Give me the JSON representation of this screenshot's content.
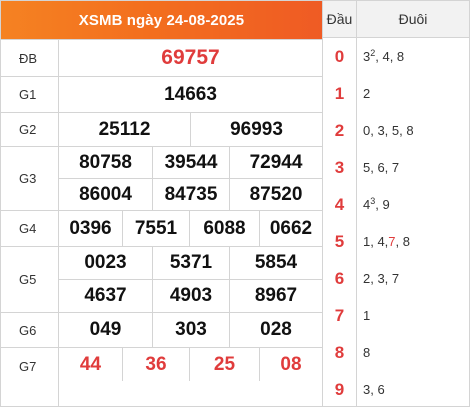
{
  "header": {
    "title": "XSMB ngày 24-08-2025"
  },
  "prizes": {
    "db": {
      "label": "ĐB",
      "values": [
        "69757"
      ]
    },
    "g1": {
      "label": "G1",
      "values": [
        "14663"
      ]
    },
    "g2": {
      "label": "G2",
      "values": [
        "25112",
        "96993"
      ]
    },
    "g3": {
      "label": "G3",
      "values": [
        "80758",
        "39544",
        "72944",
        "86004",
        "84735",
        "87520"
      ]
    },
    "g4": {
      "label": "G4",
      "values": [
        "0396",
        "7551",
        "6088",
        "0662"
      ]
    },
    "g5": {
      "label": "G5",
      "values": [
        "0023",
        "5371",
        "5854",
        "4637",
        "4903",
        "8967"
      ]
    },
    "g6": {
      "label": "G6",
      "values": [
        "049",
        "303",
        "028"
      ]
    },
    "g7": {
      "label": "G7",
      "values": [
        "44",
        "36",
        "25",
        "08"
      ]
    }
  },
  "loto": {
    "head_dau": "Đầu",
    "head_duoi": "Đuôi",
    "rows": [
      {
        "dau": "0",
        "parts": [
          {
            "t": "3"
          },
          {
            "sup": "2"
          },
          {
            "t": ", 4, 8"
          }
        ]
      },
      {
        "dau": "1",
        "parts": [
          {
            "t": "2"
          }
        ]
      },
      {
        "dau": "2",
        "parts": [
          {
            "t": "0, 3, 5, 8"
          }
        ]
      },
      {
        "dau": "3",
        "parts": [
          {
            "t": "5, 6, 7"
          }
        ]
      },
      {
        "dau": "4",
        "parts": [
          {
            "t": "4"
          },
          {
            "sup": "3"
          },
          {
            "t": ", 9"
          }
        ]
      },
      {
        "dau": "5",
        "parts": [
          {
            "t": "1, 4, "
          },
          {
            "hl": "7"
          },
          {
            "t": ", 8"
          }
        ]
      },
      {
        "dau": "6",
        "parts": [
          {
            "t": "2, 3, 7"
          }
        ]
      },
      {
        "dau": "7",
        "parts": [
          {
            "t": "1"
          }
        ]
      },
      {
        "dau": "8",
        "parts": [
          {
            "t": "8"
          }
        ]
      },
      {
        "dau": "9",
        "parts": [
          {
            "t": "3, 6"
          }
        ]
      }
    ]
  },
  "colors": {
    "header_start": "#f58222",
    "header_end": "#ef5b24",
    "red": "#e03c3c",
    "border": "#d4d4d4"
  }
}
